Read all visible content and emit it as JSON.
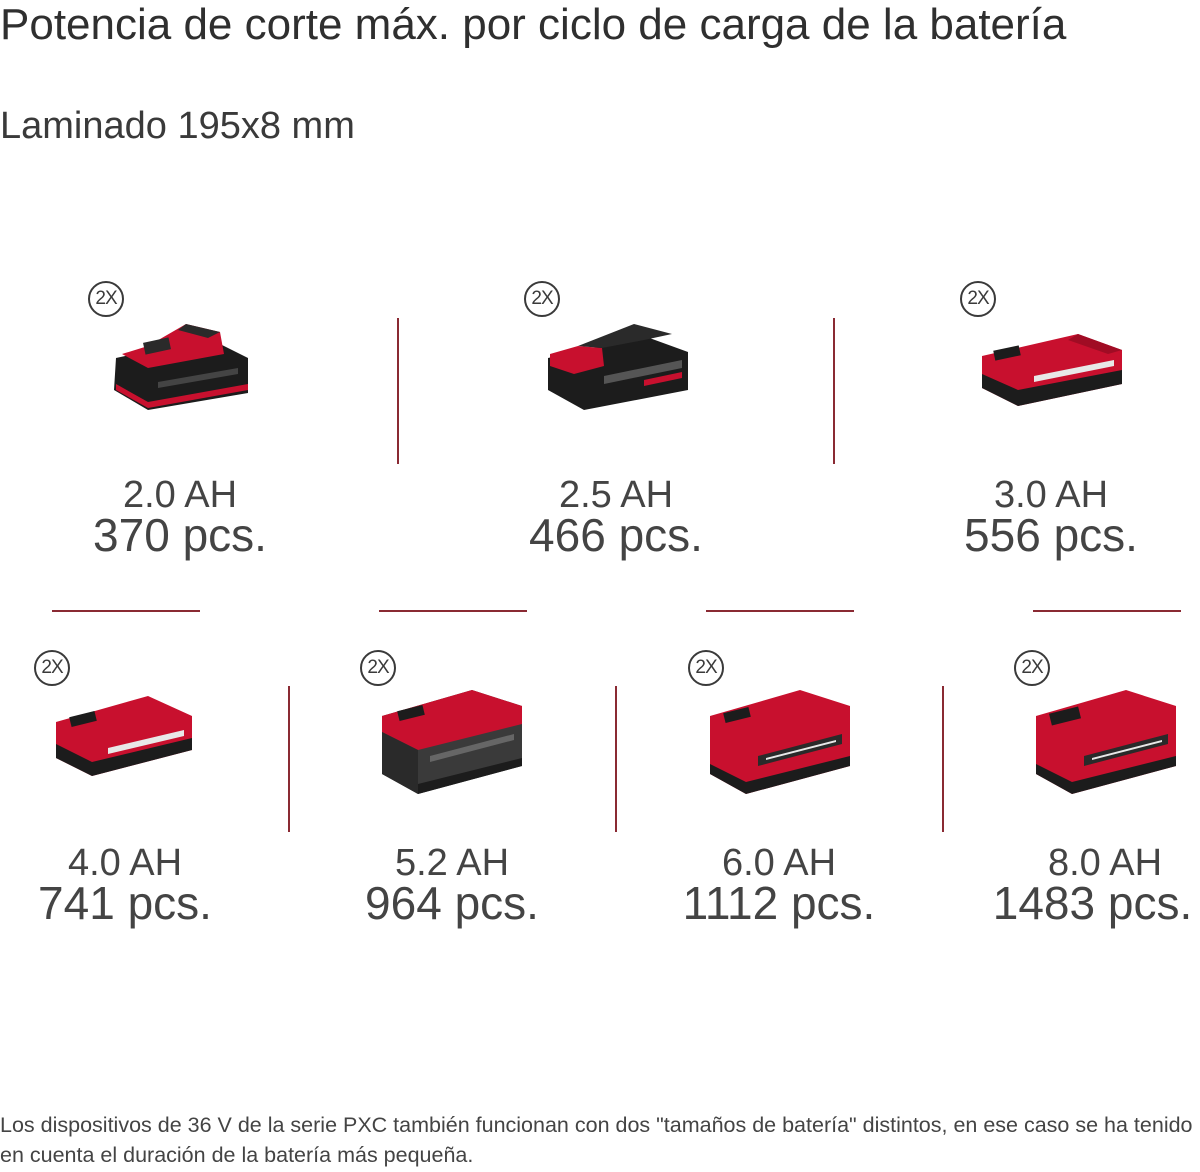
{
  "title": "Potencia de corte máx. por ciclo de carga de la batería",
  "subtitle": "Laminado 195x8 mm",
  "badge_label": "2X",
  "colors": {
    "accent": "#c8102e",
    "divider": "#8a2a33",
    "battery_dark": "#1c1c1c"
  },
  "batteries": [
    {
      "capacity": "2.0 AH",
      "pieces": "370 pcs."
    },
    {
      "capacity": "2.5 AH",
      "pieces": "466 pcs."
    },
    {
      "capacity": "3.0 AH",
      "pieces": "556 pcs."
    },
    {
      "capacity": "4.0 AH",
      "pieces": "741 pcs."
    },
    {
      "capacity": "5.2 AH",
      "pieces": "964 pcs."
    },
    {
      "capacity": "6.0 AH",
      "pieces": "1112 pcs."
    },
    {
      "capacity": "8.0 AH",
      "pieces": "1483 pcs."
    }
  ],
  "footer": "Los dispositivos de 36 V de la serie PXC también funcionan con dos \"tamaños de batería\" distintos, en ese caso se ha tenido en cuenta el duración de la batería más pequeña."
}
